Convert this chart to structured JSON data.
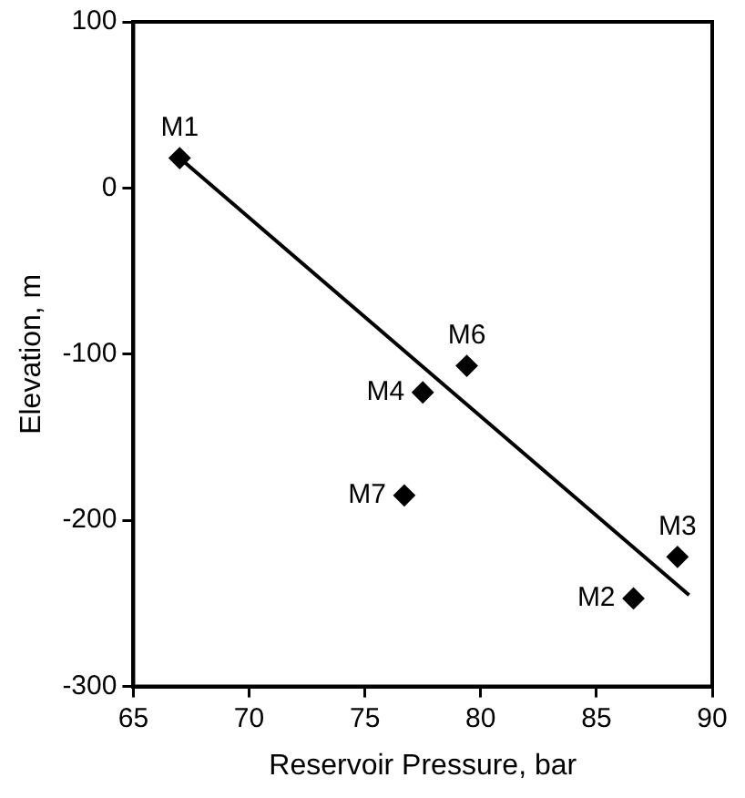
{
  "chart_data": {
    "type": "scatter",
    "xlabel": "Reservoir Pressure, bar",
    "ylabel": "Elevation, m",
    "xlim": [
      65,
      90
    ],
    "xticks": [
      65,
      70,
      75,
      80,
      85,
      90
    ],
    "ylim": [
      -300,
      100
    ],
    "yticks": [
      -300,
      -200,
      -100,
      0,
      100
    ],
    "grid": false,
    "legend": false,
    "marker": "diamond",
    "series": [
      {
        "color": "#000000",
        "x": [
          67,
          86.6,
          88.5,
          77.5,
          79.4,
          76.7
        ],
        "values": [
          18,
          -247,
          -222,
          -123,
          -107,
          -185
        ]
      },
      {
        "type": "line",
        "color": "#000000",
        "x": [
          67,
          89
        ],
        "values": [
          18,
          -245
        ],
        "marker": "none",
        "line_style": "solid"
      }
    ],
    "annotations": [
      {
        "text": "M1",
        "x": 67,
        "y": 18
      },
      {
        "text": "M2",
        "x": 86.6,
        "y": -247
      },
      {
        "text": "M3",
        "x": 88.5,
        "y": -222
      },
      {
        "text": "M4",
        "x": 77.5,
        "y": -123
      },
      {
        "text": "M6",
        "x": 79.4,
        "y": -107
      },
      {
        "text": "M7",
        "x": 76.7,
        "y": -185
      }
    ]
  }
}
